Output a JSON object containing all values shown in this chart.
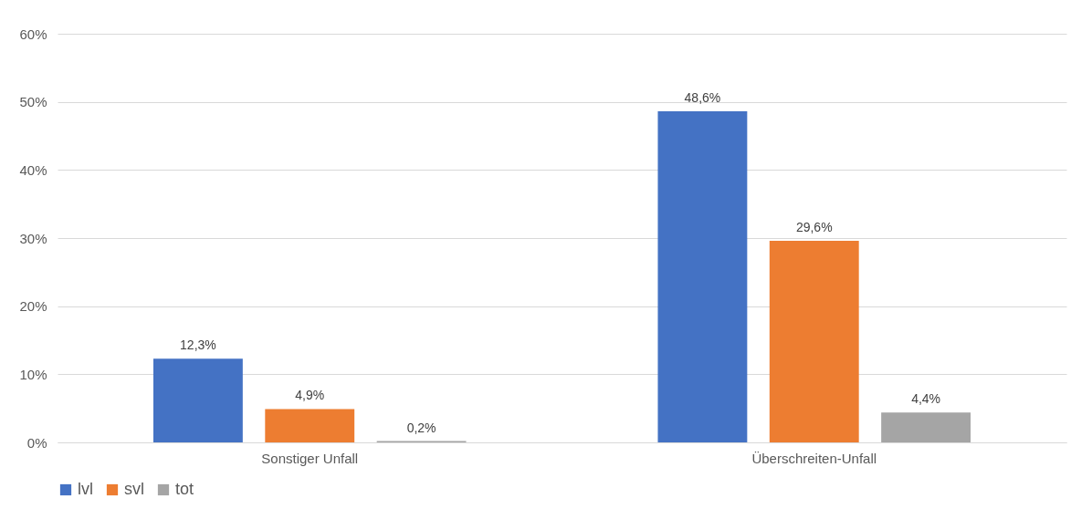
{
  "chart_data": {
    "type": "bar",
    "categories": [
      "Sonstiger Unfall",
      "Überschreiten-Unfall"
    ],
    "series": [
      {
        "name": "lvl",
        "color": "#4472c4",
        "values": [
          12.3,
          48.6
        ],
        "value_labels": [
          "12,3%",
          "48,6%"
        ]
      },
      {
        "name": "svl",
        "color": "#ed7d31",
        "values": [
          4.9,
          29.6
        ],
        "value_labels": [
          "4,9%",
          "29,6%"
        ]
      },
      {
        "name": "tot",
        "color": "#a5a5a5",
        "values": [
          0.2,
          4.4
        ],
        "value_labels": [
          "0,2%",
          "4,4%"
        ]
      }
    ],
    "ylim": [
      0,
      60
    ],
    "yticks": [
      {
        "value": 0,
        "label": "0%"
      },
      {
        "value": 10,
        "label": "10%"
      },
      {
        "value": 20,
        "label": "20%"
      },
      {
        "value": 30,
        "label": "30%"
      },
      {
        "value": 40,
        "label": "40%"
      },
      {
        "value": 50,
        "label": "50%"
      },
      {
        "value": 60,
        "label": "60%"
      }
    ],
    "grid": "y",
    "legend": "bottom"
  }
}
